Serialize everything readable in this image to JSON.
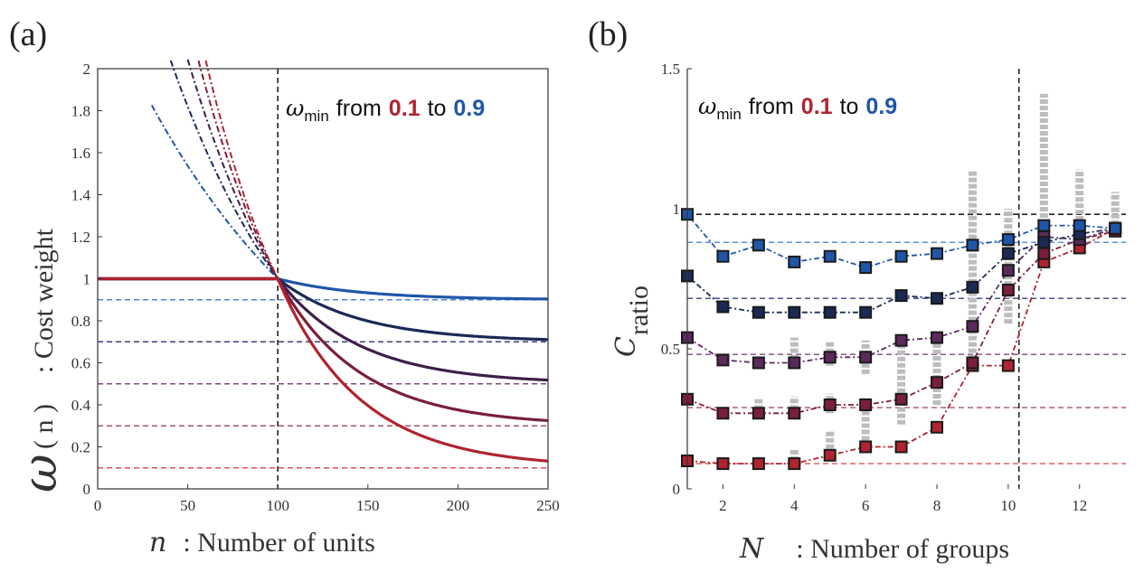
{
  "colors": {
    "red": "#b0232f",
    "blue": "#1f56a8",
    "purple_mid": "#5a2a5c",
    "navy": "#1a2a55",
    "gray": "#bdbdbd"
  },
  "panel_a": {
    "letter": "(a)",
    "annotation": {
      "symbol": "ω",
      "subscript": "min",
      "from_word": "from",
      "low": "0.1",
      "to_word": "to",
      "high": "0.9"
    }
  },
  "panel_b": {
    "letter": "(b)",
    "annotation": {
      "symbol": "ω",
      "subscript": "min",
      "from_word": "from",
      "low": "0.1",
      "to_word": "to",
      "high": "0.9"
    }
  },
  "chart_data": [
    {
      "type": "line",
      "title": "",
      "xlabel_symbol": "n",
      "xlabel": ": Number of units",
      "ylabel_symbol": "ω",
      "ylabel_arg": "( n )",
      "ylabel": ": Cost weight",
      "xlim": [
        0,
        250
      ],
      "ylim": [
        0,
        2
      ],
      "x_ticks": [
        "0",
        "50",
        "100",
        "150",
        "200",
        "250"
      ],
      "y_ticks": [
        "0",
        "0.2",
        "0.4",
        "0.6",
        "0.8",
        "1",
        "1.2",
        "1.4",
        "1.6",
        "1.8",
        "2"
      ],
      "vertical_line_x": 100,
      "omega_min_levels": [
        0.1,
        0.3,
        0.5,
        0.7,
        0.9
      ],
      "series": [
        {
          "name": "ω_min = 0.9",
          "omega_min": 0.9,
          "color": "#1f56a8"
        },
        {
          "name": "ω_min = 0.7",
          "omega_min": 0.7,
          "color": "#1a2a55"
        },
        {
          "name": "ω_min = 0.5",
          "omega_min": 0.5,
          "color": "#3e1f4a"
        },
        {
          "name": "ω_min = 0.3",
          "omega_min": 0.3,
          "color": "#7a1f3a"
        },
        {
          "name": "ω_min = 0.1",
          "omega_min": 0.1,
          "color": "#b0232f"
        }
      ]
    },
    {
      "type": "line",
      "title": "",
      "xlabel_symbol": "N",
      "xlabel": ": Number of groups",
      "ylabel_symbol": "C",
      "ylabel_sub": "ratio",
      "xlim": [
        1,
        13.3
      ],
      "ylim": [
        0,
        1.5
      ],
      "x_ticks": [
        "2",
        "4",
        "6",
        "8",
        "10",
        "12"
      ],
      "y_ticks": [
        "0",
        "0.5",
        "1",
        "1.5"
      ],
      "vertical_line_x": 10.3,
      "horizontal_line_y": 0.98,
      "x": [
        1,
        2,
        3,
        4,
        5,
        6,
        7,
        8,
        9,
        10,
        11,
        12,
        13
      ],
      "series": [
        {
          "name": "ω_min = 0.9",
          "color": "#1f56a8",
          "ref_level": 0.88,
          "values": [
            0.98,
            0.83,
            0.87,
            0.81,
            0.83,
            0.79,
            0.83,
            0.84,
            0.87,
            0.89,
            0.94,
            0.94,
            0.93
          ]
        },
        {
          "name": "ω_min = 0.7",
          "color": "#1a2a55",
          "ref_level": 0.68,
          "values": [
            0.76,
            0.65,
            0.63,
            0.63,
            0.63,
            0.63,
            0.69,
            0.68,
            0.72,
            0.84,
            0.88,
            0.91,
            0.93
          ]
        },
        {
          "name": "ω_min = 0.5",
          "color": "#5a2a5c",
          "ref_level": 0.48,
          "values": [
            0.54,
            0.46,
            0.45,
            0.45,
            0.47,
            0.47,
            0.53,
            0.54,
            0.58,
            0.78,
            0.9,
            0.89,
            0.93
          ]
        },
        {
          "name": "ω_min = 0.3",
          "color": "#7a1f3a",
          "ref_level": 0.29,
          "values": [
            0.32,
            0.27,
            0.27,
            0.27,
            0.3,
            0.3,
            0.32,
            0.38,
            0.45,
            0.71,
            0.84,
            0.89,
            0.92
          ]
        },
        {
          "name": "ω_min = 0.1",
          "color": "#b0232f",
          "ref_level": 0.09,
          "values": [
            0.1,
            0.09,
            0.09,
            0.09,
            0.12,
            0.15,
            0.15,
            0.22,
            0.44,
            0.44,
            0.81,
            0.86,
            0.93
          ]
        }
      ],
      "gray_ranges": [
        {
          "x": 3,
          "lo": 0.26,
          "hi": 0.32
        },
        {
          "x": 4,
          "lo": 0.1,
          "hi": 0.14
        },
        {
          "x": 4,
          "lo": 0.26,
          "hi": 0.33
        },
        {
          "x": 4,
          "lo": 0.44,
          "hi": 0.54
        },
        {
          "x": 5,
          "lo": 0.12,
          "hi": 0.21
        },
        {
          "x": 5,
          "lo": 0.27,
          "hi": 0.34
        },
        {
          "x": 5,
          "lo": 0.44,
          "hi": 0.53
        },
        {
          "x": 6,
          "lo": 0.15,
          "hi": 0.33
        },
        {
          "x": 6,
          "lo": 0.41,
          "hi": 0.53
        },
        {
          "x": 7,
          "lo": 0.23,
          "hi": 0.55
        },
        {
          "x": 8,
          "lo": 0.3,
          "hi": 0.56
        },
        {
          "x": 9,
          "lo": 0.44,
          "hi": 1.14
        },
        {
          "x": 10,
          "lo": 0.59,
          "hi": 1.0
        },
        {
          "x": 11,
          "lo": 0.9,
          "hi": 1.41
        },
        {
          "x": 12,
          "lo": 0.89,
          "hi": 1.14
        },
        {
          "x": 13,
          "lo": 0.92,
          "hi": 1.06
        }
      ]
    }
  ]
}
